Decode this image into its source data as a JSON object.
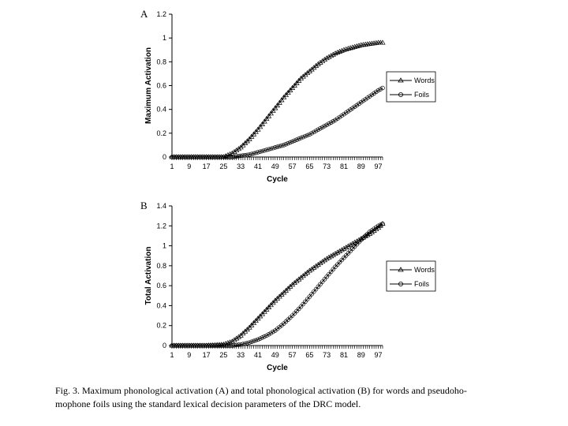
{
  "chart_data": [
    {
      "type": "line",
      "panel": "A",
      "xlabel": "Cycle",
      "ylabel": "Maximum Activation",
      "xlim": [
        1,
        99
      ],
      "ylim": [
        0,
        1.2
      ],
      "x_ticks": [
        "1",
        "9",
        "17",
        "25",
        "33",
        "41",
        "49",
        "57",
        "65",
        "73",
        "81",
        "89",
        "97"
      ],
      "y_ticks": [
        "0",
        "0.2",
        "0.4",
        "0.6",
        "0.8",
        "1",
        "1.2"
      ],
      "grid": false,
      "legend_position": "right",
      "series": [
        {
          "name": "Words",
          "marker": "triangle",
          "x": [
            1,
            9,
            17,
            25,
            29,
            33,
            37,
            41,
            45,
            49,
            53,
            57,
            61,
            65,
            69,
            73,
            77,
            81,
            85,
            89,
            93,
            97,
            99
          ],
          "y": [
            0,
            0,
            0,
            0,
            0.03,
            0.08,
            0.15,
            0.23,
            0.32,
            0.41,
            0.5,
            0.58,
            0.66,
            0.72,
            0.78,
            0.83,
            0.87,
            0.9,
            0.92,
            0.94,
            0.95,
            0.96,
            0.96
          ]
        },
        {
          "name": "Foils",
          "marker": "circle",
          "x": [
            1,
            9,
            17,
            25,
            29,
            33,
            37,
            41,
            45,
            49,
            53,
            57,
            61,
            65,
            69,
            73,
            77,
            81,
            85,
            89,
            93,
            97,
            99
          ],
          "y": [
            0,
            0,
            0,
            0,
            0,
            0.01,
            0.02,
            0.04,
            0.06,
            0.08,
            0.1,
            0.13,
            0.16,
            0.19,
            0.23,
            0.27,
            0.31,
            0.36,
            0.41,
            0.46,
            0.51,
            0.56,
            0.58
          ]
        }
      ]
    },
    {
      "type": "line",
      "panel": "B",
      "xlabel": "Cycle",
      "ylabel": "Total Activation",
      "xlim": [
        1,
        99
      ],
      "ylim": [
        0,
        1.4
      ],
      "x_ticks": [
        "1",
        "9",
        "17",
        "25",
        "33",
        "41",
        "49",
        "57",
        "65",
        "73",
        "81",
        "89",
        "97"
      ],
      "y_ticks": [
        "0",
        "0.2",
        "0.4",
        "0.6",
        "0.8",
        "1",
        "1.2",
        "1.4"
      ],
      "grid": false,
      "legend_position": "right",
      "series": [
        {
          "name": "Words",
          "marker": "triangle",
          "x": [
            1,
            9,
            17,
            25,
            29,
            33,
            37,
            41,
            45,
            49,
            53,
            57,
            61,
            65,
            69,
            73,
            77,
            81,
            85,
            89,
            93,
            97,
            99
          ],
          "y": [
            0,
            0,
            0,
            0.01,
            0.04,
            0.1,
            0.18,
            0.27,
            0.36,
            0.45,
            0.53,
            0.61,
            0.68,
            0.75,
            0.81,
            0.87,
            0.92,
            0.97,
            1.02,
            1.07,
            1.12,
            1.18,
            1.22
          ]
        },
        {
          "name": "Foils",
          "marker": "circle",
          "x": [
            1,
            9,
            17,
            25,
            29,
            33,
            37,
            41,
            45,
            49,
            53,
            57,
            61,
            65,
            69,
            73,
            77,
            81,
            85,
            89,
            93,
            97,
            99
          ],
          "y": [
            0,
            0,
            0,
            0,
            0,
            0.01,
            0.03,
            0.06,
            0.1,
            0.15,
            0.22,
            0.3,
            0.39,
            0.49,
            0.59,
            0.69,
            0.79,
            0.88,
            0.97,
            1.06,
            1.14,
            1.2,
            1.22
          ]
        }
      ]
    }
  ],
  "caption": {
    "line1": "Fig. 3. Maximum phonological activation (A) and total phonological activation (B) for words and pseudoho-",
    "line2": "mophone foils using the standard lexical decision parameters of the DRC model."
  }
}
